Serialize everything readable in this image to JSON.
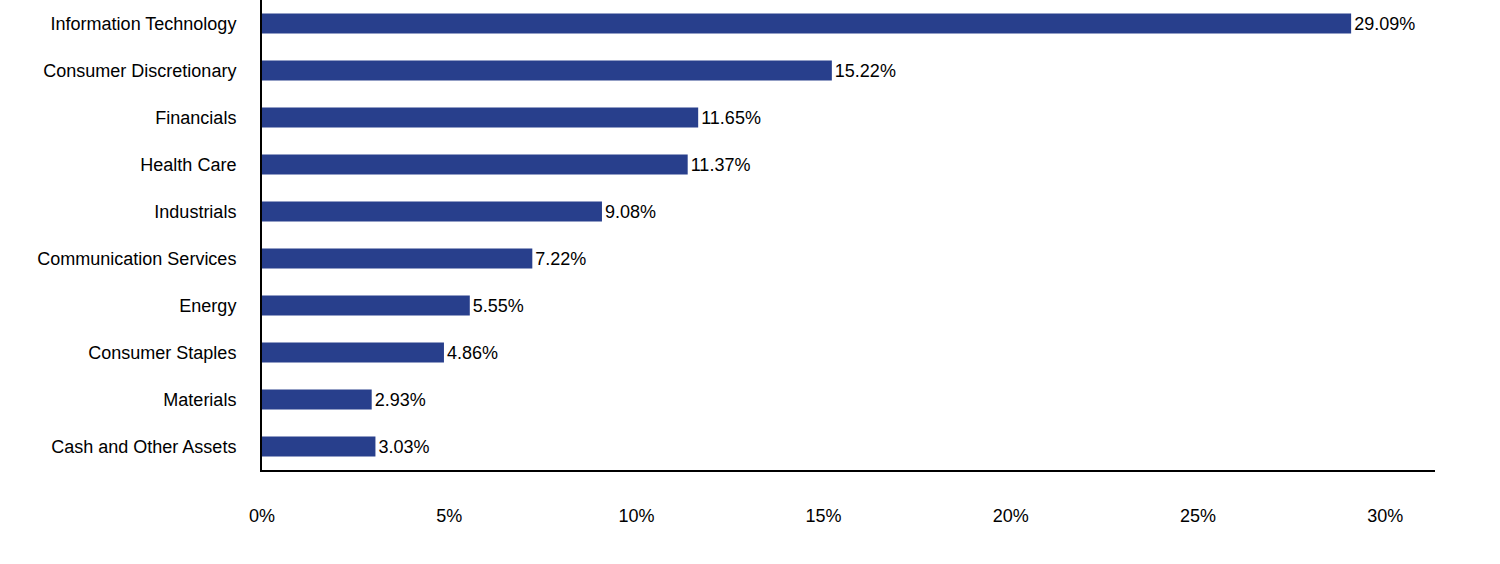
{
  "chart_data": {
    "type": "bar",
    "orientation": "horizontal",
    "categories": [
      "Information Technology",
      "Consumer Discretionary",
      "Financials",
      "Health Care",
      "Industrials",
      "Communication Services",
      "Energy",
      "Consumer Staples",
      "Materials",
      "Cash and Other Assets"
    ],
    "values": [
      29.09,
      15.22,
      11.65,
      11.37,
      9.08,
      7.22,
      5.55,
      4.86,
      2.93,
      3.03
    ],
    "value_labels": [
      "29.09%",
      "15.22%",
      "11.65%",
      "11.37%",
      "9.08%",
      "7.22%",
      "5.55%",
      "4.86%",
      "2.93%",
      "3.03%"
    ],
    "data_labels": true,
    "color": "#283f8c",
    "xlim": [
      0,
      31.33
    ],
    "xticks": [
      {
        "value": 0,
        "label": "0%"
      },
      {
        "value": 5,
        "label": "5%"
      },
      {
        "value": 10,
        "label": "10%"
      },
      {
        "value": 15,
        "label": "15%"
      },
      {
        "value": 20,
        "label": "20%"
      },
      {
        "value": 25,
        "label": "25%"
      },
      {
        "value": 30,
        "label": "30%"
      }
    ],
    "grid": false
  }
}
